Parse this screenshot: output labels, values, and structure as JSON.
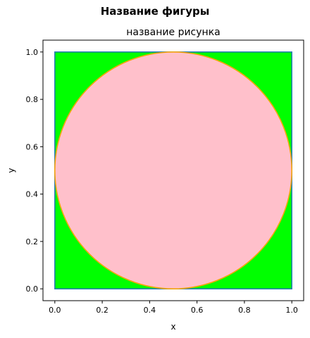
{
  "figure": {
    "suptitle": "Название фигуры"
  },
  "chart_data": {
    "type": "diagram-plot",
    "title": "название рисунка",
    "xlabel": "x",
    "ylabel": "y",
    "xlim": [
      -0.05,
      1.05
    ],
    "ylim": [
      -0.05,
      1.05
    ],
    "xticks": [
      "0.0",
      "0.2",
      "0.4",
      "0.6",
      "0.8",
      "1.0"
    ],
    "yticks": [
      "0.0",
      "0.2",
      "0.4",
      "0.6",
      "0.8",
      "1.0"
    ],
    "grid": false,
    "shapes": [
      {
        "kind": "square",
        "x0": 0,
        "y0": 0,
        "x1": 1,
        "y1": 1,
        "fill": "#00ff00",
        "edge": "#1f77b4"
      },
      {
        "kind": "circle",
        "cx": 0.5,
        "cy": 0.5,
        "r": 0.5,
        "fill": "#ffc0cb",
        "edge": "#ffa500"
      }
    ]
  }
}
